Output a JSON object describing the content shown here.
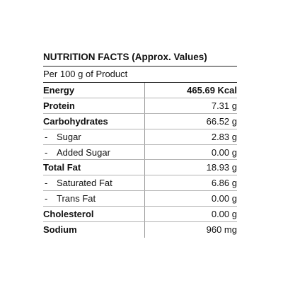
{
  "title": "NUTRITION FACTS (Approx. Values)",
  "subtitle": "Per 100 g of Product",
  "rows": [
    {
      "label": "Energy",
      "value": "465.69 Kcal",
      "bold": true,
      "sub": false
    },
    {
      "label": "Protein",
      "value": "7.31 g",
      "bold": true,
      "sub": false
    },
    {
      "label": "Carbohydrates",
      "value": "66.52 g",
      "bold": true,
      "sub": false
    },
    {
      "label": "Sugar",
      "value": "2.83 g",
      "bold": false,
      "sub": true
    },
    {
      "label": "Added Sugar",
      "value": "0.00 g",
      "bold": false,
      "sub": true
    },
    {
      "label": "Total Fat",
      "value": "18.93 g",
      "bold": true,
      "sub": false
    },
    {
      "label": "Saturated Fat",
      "value": "6.86  g",
      "bold": false,
      "sub": true
    },
    {
      "label": "Trans Fat",
      "value": "0.00 g",
      "bold": false,
      "sub": true
    },
    {
      "label": "Cholesterol",
      "value": "0.00 g",
      "bold": true,
      "sub": false
    },
    {
      "label": "Sodium",
      "value": "960 mg",
      "bold": true,
      "sub": false
    }
  ],
  "sub_prefix": "-"
}
